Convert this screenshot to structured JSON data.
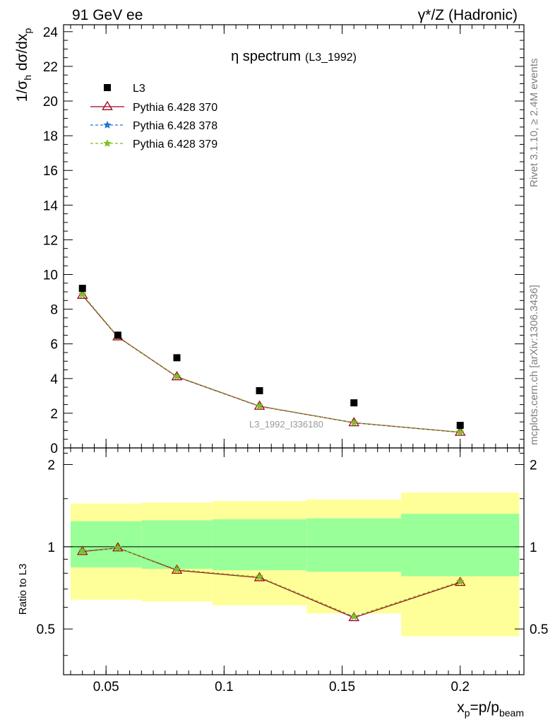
{
  "header": {
    "left": "91 GeV ee",
    "right_sup": "γ*/Z (Hadronic)"
  },
  "side": {
    "rivet": "Rivet 3.1.10, ≥ 2.4M events",
    "mcplots": "mcplots.cern.ch [arXiv:1306.3436]"
  },
  "colors": {
    "data": "#000000",
    "p370": "#a0001a",
    "p378": "#1f77d0",
    "p379": "#7ec11f",
    "band_inner": "#99ff99",
    "band_outer": "#ffff99"
  },
  "chart_data": {
    "type": "scatter",
    "title": "η spectrum",
    "title_tag": "(L3_1992)",
    "watermark": "L3_1992_I336180",
    "ylabel": "1/σ_h dσ/dx_p",
    "xlabel": "x_p=p/p_beam",
    "ratio_ylabel": "Ratio to L3",
    "xlim": [
      0.032,
      0.227
    ],
    "ylim": [
      0,
      24.4
    ],
    "ratio_ylim": [
      0.34,
      2.3
    ],
    "x_ticks": [
      0.05,
      0.1,
      0.15,
      0.2
    ],
    "x_tick_labels": [
      "0.05",
      "0.1",
      "0.15",
      "0.2"
    ],
    "y_ticks": [
      0,
      2,
      4,
      6,
      8,
      10,
      12,
      14,
      16,
      18,
      20,
      22,
      24
    ],
    "y_tick_labels": [
      "0",
      "2",
      "4",
      "6",
      "8",
      "10",
      "12",
      "14",
      "16",
      "18",
      "20",
      "22",
      "24"
    ],
    "ratio_ticks": [
      0.5,
      1,
      2
    ],
    "ratio_tick_labels": [
      "0.5",
      "1",
      "2"
    ],
    "legend": [
      {
        "label": "L3",
        "marker": "square"
      },
      {
        "label": "Pythia 6.428 370",
        "marker": "triangle"
      },
      {
        "label": "Pythia 6.428 378",
        "marker": "star"
      },
      {
        "label": "Pythia 6.428 379",
        "marker": "star"
      }
    ],
    "data_points": {
      "name": "L3",
      "x": [
        0.04,
        0.055,
        0.08,
        0.115,
        0.155,
        0.2
      ],
      "y": [
        9.2,
        6.5,
        5.2,
        3.3,
        2.6,
        1.3
      ]
    },
    "series": [
      {
        "name": "Pythia 6.428 370",
        "x": [
          0.04,
          0.055,
          0.08,
          0.115,
          0.155,
          0.2
        ],
        "y": [
          8.8,
          6.4,
          4.1,
          2.4,
          1.45,
          0.9
        ],
        "ratio": [
          0.96,
          0.99,
          0.82,
          0.77,
          0.55,
          0.74
        ]
      },
      {
        "name": "Pythia 6.428 378",
        "x": [
          0.04,
          0.055,
          0.08,
          0.115,
          0.155,
          0.2
        ],
        "y": [
          8.85,
          6.42,
          4.12,
          2.42,
          1.46,
          0.91
        ],
        "ratio": [
          0.965,
          0.99,
          0.825,
          0.775,
          0.555,
          0.745
        ]
      },
      {
        "name": "Pythia 6.428 379",
        "x": [
          0.04,
          0.055,
          0.08,
          0.115,
          0.155,
          0.2
        ],
        "y": [
          8.85,
          6.42,
          4.12,
          2.42,
          1.46,
          0.91
        ],
        "ratio": [
          0.965,
          0.99,
          0.825,
          0.775,
          0.555,
          0.745
        ]
      }
    ],
    "ratio_bands": [
      {
        "x_lo": 0.035,
        "x_hi": 0.045,
        "inner": [
          0.84,
          1.24
        ],
        "outer": [
          0.64,
          1.44
        ]
      },
      {
        "x_lo": 0.045,
        "x_hi": 0.065,
        "inner": [
          0.84,
          1.24
        ],
        "outer": [
          0.64,
          1.44
        ]
      },
      {
        "x_lo": 0.065,
        "x_hi": 0.095,
        "inner": [
          0.83,
          1.25
        ],
        "outer": [
          0.63,
          1.45
        ]
      },
      {
        "x_lo": 0.095,
        "x_hi": 0.135,
        "inner": [
          0.82,
          1.26
        ],
        "outer": [
          0.61,
          1.47
        ]
      },
      {
        "x_lo": 0.135,
        "x_hi": 0.175,
        "inner": [
          0.81,
          1.27
        ],
        "outer": [
          0.57,
          1.49
        ]
      },
      {
        "x_lo": 0.175,
        "x_hi": 0.225,
        "inner": [
          0.78,
          1.32
        ],
        "outer": [
          0.47,
          1.58
        ]
      }
    ]
  }
}
